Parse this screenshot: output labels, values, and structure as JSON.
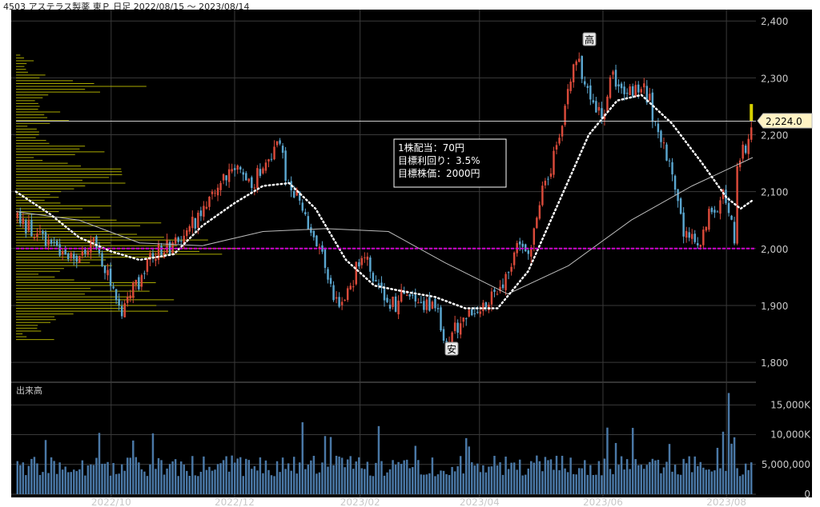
{
  "header": {
    "title": "4503 アステラス製薬 東Ｐ 日足 2022/08/15 ～ 2023/08/14"
  },
  "colors": {
    "background": "#000000",
    "grid": "#3a3a3a",
    "up_candle": "#d94a3a",
    "down_candle": "#5aa6cf",
    "volume_bar": "#4a78a6",
    "ma_fast": "#ffffff",
    "ma_slow": "#bbbbbb",
    "target_line": "#d000d0",
    "volume_profile": "#c8c800",
    "last_price_bar": "#d6d000",
    "last_price_label_bg": "#fff3c4"
  },
  "chart_data": {
    "type": "candlestick",
    "x_type": "date",
    "x_tick_labels": [
      "2022/10",
      "2022/12",
      "2023/02",
      "2023/04",
      "2023/06",
      "2023/08"
    ],
    "y_tick_labels": [
      "2,400",
      "2,300",
      "2,200",
      "2,100",
      "2,000",
      "1,900",
      "1,800"
    ],
    "y_ticks": [
      2400,
      2300,
      2200,
      2100,
      2000,
      1900,
      1800
    ],
    "ylim": [
      1765,
      2420
    ],
    "volume_panel": {
      "label": "出来高",
      "tick_labels": [
        "15,000K",
        "10,000K",
        "5,000,000",
        "0"
      ],
      "ticks": [
        15000000,
        10000000,
        5000000,
        0
      ],
      "ylim": [
        0,
        18000000
      ]
    },
    "last_price_label": "2,224.0",
    "last_price": 2224,
    "target_price": 2000,
    "high_marker": {
      "label": "高",
      "date": "2023/05/19",
      "price": 2345
    },
    "low_marker": {
      "label": "安",
      "date": "2023/03/15",
      "price": 1825
    },
    "annotation_lines": [
      "1株配当：70円",
      "目標利回り：3.5%",
      "目標株価：2000円"
    ],
    "price_path": [
      [
        "2022-08-15",
        2050
      ],
      [
        "2022-08-25",
        2020
      ],
      [
        "2022-09-05",
        1985
      ],
      [
        "2022-09-15",
        1990
      ],
      [
        "2022-09-22",
        2010
      ],
      [
        "2022-09-28",
        1950
      ],
      [
        "2022-10-05",
        1890
      ],
      [
        "2022-10-13",
        1940
      ],
      [
        "2022-10-21",
        1990
      ],
      [
        "2022-10-31",
        2010
      ],
      [
        "2022-11-08",
        2040
      ],
      [
        "2022-11-16",
        2080
      ],
      [
        "2022-11-25",
        2130
      ],
      [
        "2022-12-02",
        2140
      ],
      [
        "2022-12-09",
        2110
      ],
      [
        "2022-12-16",
        2150
      ],
      [
        "2022-12-22",
        2180
      ],
      [
        "2022-12-27",
        2120
      ],
      [
        "2023-01-06",
        2040
      ],
      [
        "2023-01-13",
        1970
      ],
      [
        "2023-01-20",
        1895
      ],
      [
        "2023-01-27",
        1945
      ],
      [
        "2023-02-03",
        1990
      ],
      [
        "2023-02-10",
        1925
      ],
      [
        "2023-02-17",
        1900
      ],
      [
        "2023-02-24",
        1930
      ],
      [
        "2023-03-03",
        1900
      ],
      [
        "2023-03-10",
        1890
      ],
      [
        "2023-03-15",
        1830
      ],
      [
        "2023-03-22",
        1870
      ],
      [
        "2023-03-31",
        1890
      ],
      [
        "2023-04-07",
        1915
      ],
      [
        "2023-04-14",
        1945
      ],
      [
        "2023-04-20",
        2010
      ],
      [
        "2023-04-25",
        2000
      ],
      [
        "2023-05-01",
        2090
      ],
      [
        "2023-05-08",
        2170
      ],
      [
        "2023-05-15",
        2290
      ],
      [
        "2023-05-19",
        2335
      ],
      [
        "2023-05-25",
        2270
      ],
      [
        "2023-05-31",
        2230
      ],
      [
        "2023-06-06",
        2300
      ],
      [
        "2023-06-12",
        2275
      ],
      [
        "2023-06-16",
        2285
      ],
      [
        "2023-06-21",
        2280
      ],
      [
        "2023-06-28",
        2200
      ],
      [
        "2023-07-05",
        2130
      ],
      [
        "2023-07-12",
        2020
      ],
      [
        "2023-07-18",
        2000
      ],
      [
        "2023-07-24",
        2060
      ],
      [
        "2023-07-31",
        2090
      ],
      [
        "2023-08-04",
        2020
      ],
      [
        "2023-08-07",
        2150
      ],
      [
        "2023-08-14",
        2224
      ]
    ],
    "ma_fast_path": [
      [
        "2022-08-15",
        2100
      ],
      [
        "2022-09-01",
        2060
      ],
      [
        "2022-09-15",
        2020
      ],
      [
        "2022-10-01",
        1995
      ],
      [
        "2022-10-15",
        1980
      ],
      [
        "2022-11-01",
        1990
      ],
      [
        "2022-11-15",
        2040
      ],
      [
        "2022-12-01",
        2080
      ],
      [
        "2022-12-15",
        2110
      ],
      [
        "2022-12-28",
        2115
      ],
      [
        "2023-01-10",
        2070
      ],
      [
        "2023-01-25",
        1980
      ],
      [
        "2023-02-08",
        1935
      ],
      [
        "2023-02-22",
        1925
      ],
      [
        "2023-03-10",
        1915
      ],
      [
        "2023-03-25",
        1895
      ],
      [
        "2023-04-10",
        1895
      ],
      [
        "2023-04-25",
        1960
      ],
      [
        "2023-05-10",
        2080
      ],
      [
        "2023-05-25",
        2200
      ],
      [
        "2023-06-08",
        2260
      ],
      [
        "2023-06-20",
        2270
      ],
      [
        "2023-07-05",
        2220
      ],
      [
        "2023-07-20",
        2150
      ],
      [
        "2023-08-01",
        2090
      ],
      [
        "2023-08-08",
        2070
      ],
      [
        "2023-08-14",
        2085
      ]
    ],
    "ma_slow_path": [
      [
        "2022-08-15",
        2065
      ],
      [
        "2022-09-15",
        2050
      ],
      [
        "2022-10-15",
        2010
      ],
      [
        "2022-11-15",
        2005
      ],
      [
        "2022-12-15",
        2030
      ],
      [
        "2023-01-15",
        2035
      ],
      [
        "2023-02-15",
        2030
      ],
      [
        "2023-03-15",
        1975
      ],
      [
        "2023-04-15",
        1920
      ],
      [
        "2023-05-15",
        1970
      ],
      [
        "2023-06-15",
        2050
      ],
      [
        "2023-07-15",
        2110
      ],
      [
        "2023-08-14",
        2160
      ]
    ]
  }
}
